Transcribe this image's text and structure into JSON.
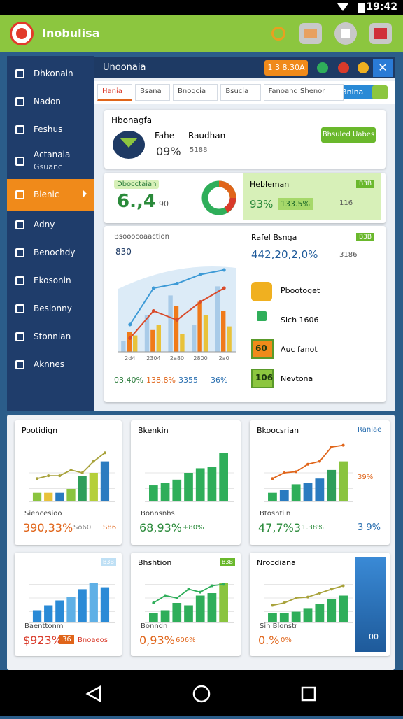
{
  "status_bar": {
    "time": "19:42"
  },
  "app_bar": {
    "title": "Inobulisa"
  },
  "sidebar": {
    "items": [
      {
        "label": "Dhkonain"
      },
      {
        "label": "Nadon"
      },
      {
        "label": "Feshus"
      },
      {
        "label": "Actanaia",
        "sublabel": "Gsuanc"
      },
      {
        "label": "Blenic",
        "active": true
      },
      {
        "label": "Adny"
      },
      {
        "label": "Benochdy"
      },
      {
        "label": "Ekosonin"
      },
      {
        "label": "Beslonny"
      },
      {
        "label": "Stonnian"
      },
      {
        "label": "Aknnes"
      }
    ]
  },
  "panel": {
    "title": "Unoonaia",
    "badge": "1 3 8.30A",
    "tabs": [
      "Hania",
      "Bsana",
      "Bnoqcia",
      "Bsucia",
      "Fanoand Shenor"
    ],
    "action": "Bnina"
  },
  "summary_card": {
    "title": "Hbonagfa",
    "label_a": "Fahe",
    "value_a": "09%",
    "label_b": "Raudhan",
    "value_b": "5188",
    "button": "Bhsuled Uabes"
  },
  "kpi_card": {
    "tag": "Dbocctaian",
    "value": "6.,4",
    "sub": "90",
    "right_title": "Hebleman",
    "right_tag": "B3B",
    "right_value": "93%",
    "right_pill": "133.5%",
    "right_sub": "116"
  },
  "main_chart": {
    "title": "Bsooocoaaction",
    "y_label": "830",
    "categories": [
      "2d4",
      "2304",
      "2a80",
      "2800",
      "2a0"
    ],
    "ylim": [
      0,
      100
    ],
    "bars": [
      {
        "color": "#a9cbe8",
        "values": [
          12,
          40,
          62,
          30,
          72
        ]
      },
      {
        "color": "#f07a1a",
        "values": [
          22,
          24,
          50,
          55,
          45
        ]
      },
      {
        "color": "#e8c23a",
        "values": [
          18,
          30,
          20,
          40,
          28
        ]
      }
    ],
    "lines": [
      {
        "color": "#3d9ad6",
        "values": [
          30,
          70,
          75,
          85,
          90
        ]
      },
      {
        "color": "#d94b2b",
        "values": [
          15,
          45,
          35,
          55,
          70
        ]
      }
    ],
    "footer": [
      "03.40%",
      "138.8%",
      "3355",
      "36%"
    ],
    "footer_colors": [
      "#2a7b3a",
      "#e0651a",
      "#2a6fb0",
      "#2a6fb0"
    ]
  },
  "side_list": {
    "title": "Rafel Bsnga",
    "tag": "B3B",
    "value": "442,20,2,0%",
    "sub": "3186",
    "items": [
      {
        "label": "Pbootoget"
      },
      {
        "label": "Sich 1606"
      },
      {
        "label": "Auc fanot",
        "badge": "60"
      },
      {
        "label": "Nevtona",
        "badge": "106"
      }
    ]
  },
  "cards": [
    {
      "title": "Pootidign",
      "ylim": [
        0,
        100
      ],
      "bars": {
        "colors": [
          "#8ac43f",
          "#e8c23a",
          "#2a7bc0",
          "#8ac43f",
          "#2f9e5a",
          "#b5cf3a",
          "#2a7bc0"
        ],
        "values": [
          15,
          15,
          15,
          22,
          45,
          50,
          70
        ]
      },
      "line": {
        "color": "#a8a23a",
        "values": [
          40,
          45,
          45,
          55,
          50,
          70,
          85
        ]
      },
      "caption": "Siencesioo",
      "value": "390,33%",
      "value_color": "#e0651a",
      "extra": [
        "So60",
        "S86"
      ]
    },
    {
      "title": "Bkenkin",
      "ylim": [
        0,
        100
      ],
      "bars": {
        "colors": [
          "#2fae5a",
          "#2fae5a",
          "#2fae5a",
          "#2fae5a",
          "#2fae5a",
          "#2fae5a",
          "#2fae5a"
        ],
        "values": [
          28,
          32,
          38,
          50,
          58,
          60,
          85
        ]
      },
      "caption": "Bonnsnhs",
      "value": "68,93%",
      "value_color": "#2a8a3a",
      "extra": [
        "+80%"
      ]
    },
    {
      "title": "Bkoocsrian",
      "ylim": [
        0,
        100
      ],
      "bars": {
        "colors": [
          "#2fae5a",
          "#2a7bc0",
          "#2fae5a",
          "#2a7bc0",
          "#2a7bc0",
          "#2f9e5a",
          "#8ac43f"
        ],
        "values": [
          15,
          20,
          30,
          32,
          40,
          55,
          70
        ]
      },
      "line": {
        "color": "#e0651a",
        "values": [
          40,
          50,
          52,
          65,
          70,
          95,
          98
        ]
      },
      "caption": "Btoshtiin",
      "value": "47,7%3",
      "value_color": "#2a8a3a",
      "extra": [
        "1.38%"
      ],
      "side": [
        "Raniae",
        "39%",
        "3 9%"
      ]
    },
    {
      "tag": "B3B",
      "ylim": [
        0,
        100
      ],
      "bars": {
        "colors": [
          "#2a8ad6",
          "#2a8ad6",
          "#2a8ad6",
          "#5fb0e6",
          "#2a8ad6",
          "#5fb0e6",
          "#2a8ad6"
        ],
        "values": [
          25,
          35,
          45,
          52,
          68,
          80,
          72
        ]
      },
      "caption": "Baenttonm",
      "value": "$923%",
      "value_color": "#d93a2a",
      "badge": "36",
      "extra": [
        "Bnoaeos"
      ]
    },
    {
      "title": "Bhshtion",
      "tag": "B3B",
      "ylim": [
        0,
        100
      ],
      "bars": {
        "colors": [
          "#2fae5a",
          "#2fae5a",
          "#2fae5a",
          "#2fae5a",
          "#2fae5a",
          "#2fae5a",
          "#8ac43f"
        ],
        "values": [
          20,
          25,
          40,
          35,
          55,
          60,
          80
        ]
      },
      "line": {
        "color": "#2fae5a",
        "values": [
          40,
          55,
          50,
          68,
          62,
          75,
          78
        ]
      },
      "caption": "Bonndn",
      "value": "0,93%",
      "value_color": "#e0651a",
      "extra": [
        "606%"
      ]
    },
    {
      "title": "Nrocdiana",
      "ylim": [
        0,
        100
      ],
      "bars": {
        "colors": [
          "#2fae5a",
          "#2fae5a",
          "#2fae5a",
          "#2fae5a",
          "#2fae5a",
          "#2fae5a",
          "#2fae5a"
        ],
        "values": [
          20,
          20,
          22,
          28,
          38,
          48,
          55
        ]
      },
      "line": {
        "color": "#a8a23a",
        "values": [
          35,
          40,
          50,
          52,
          60,
          68,
          75
        ]
      },
      "caption": "Sin Blonstr",
      "value": "0.%",
      "value_color": "#e0651a",
      "extra": [
        "0%"
      ],
      "area_label": "00"
    }
  ]
}
